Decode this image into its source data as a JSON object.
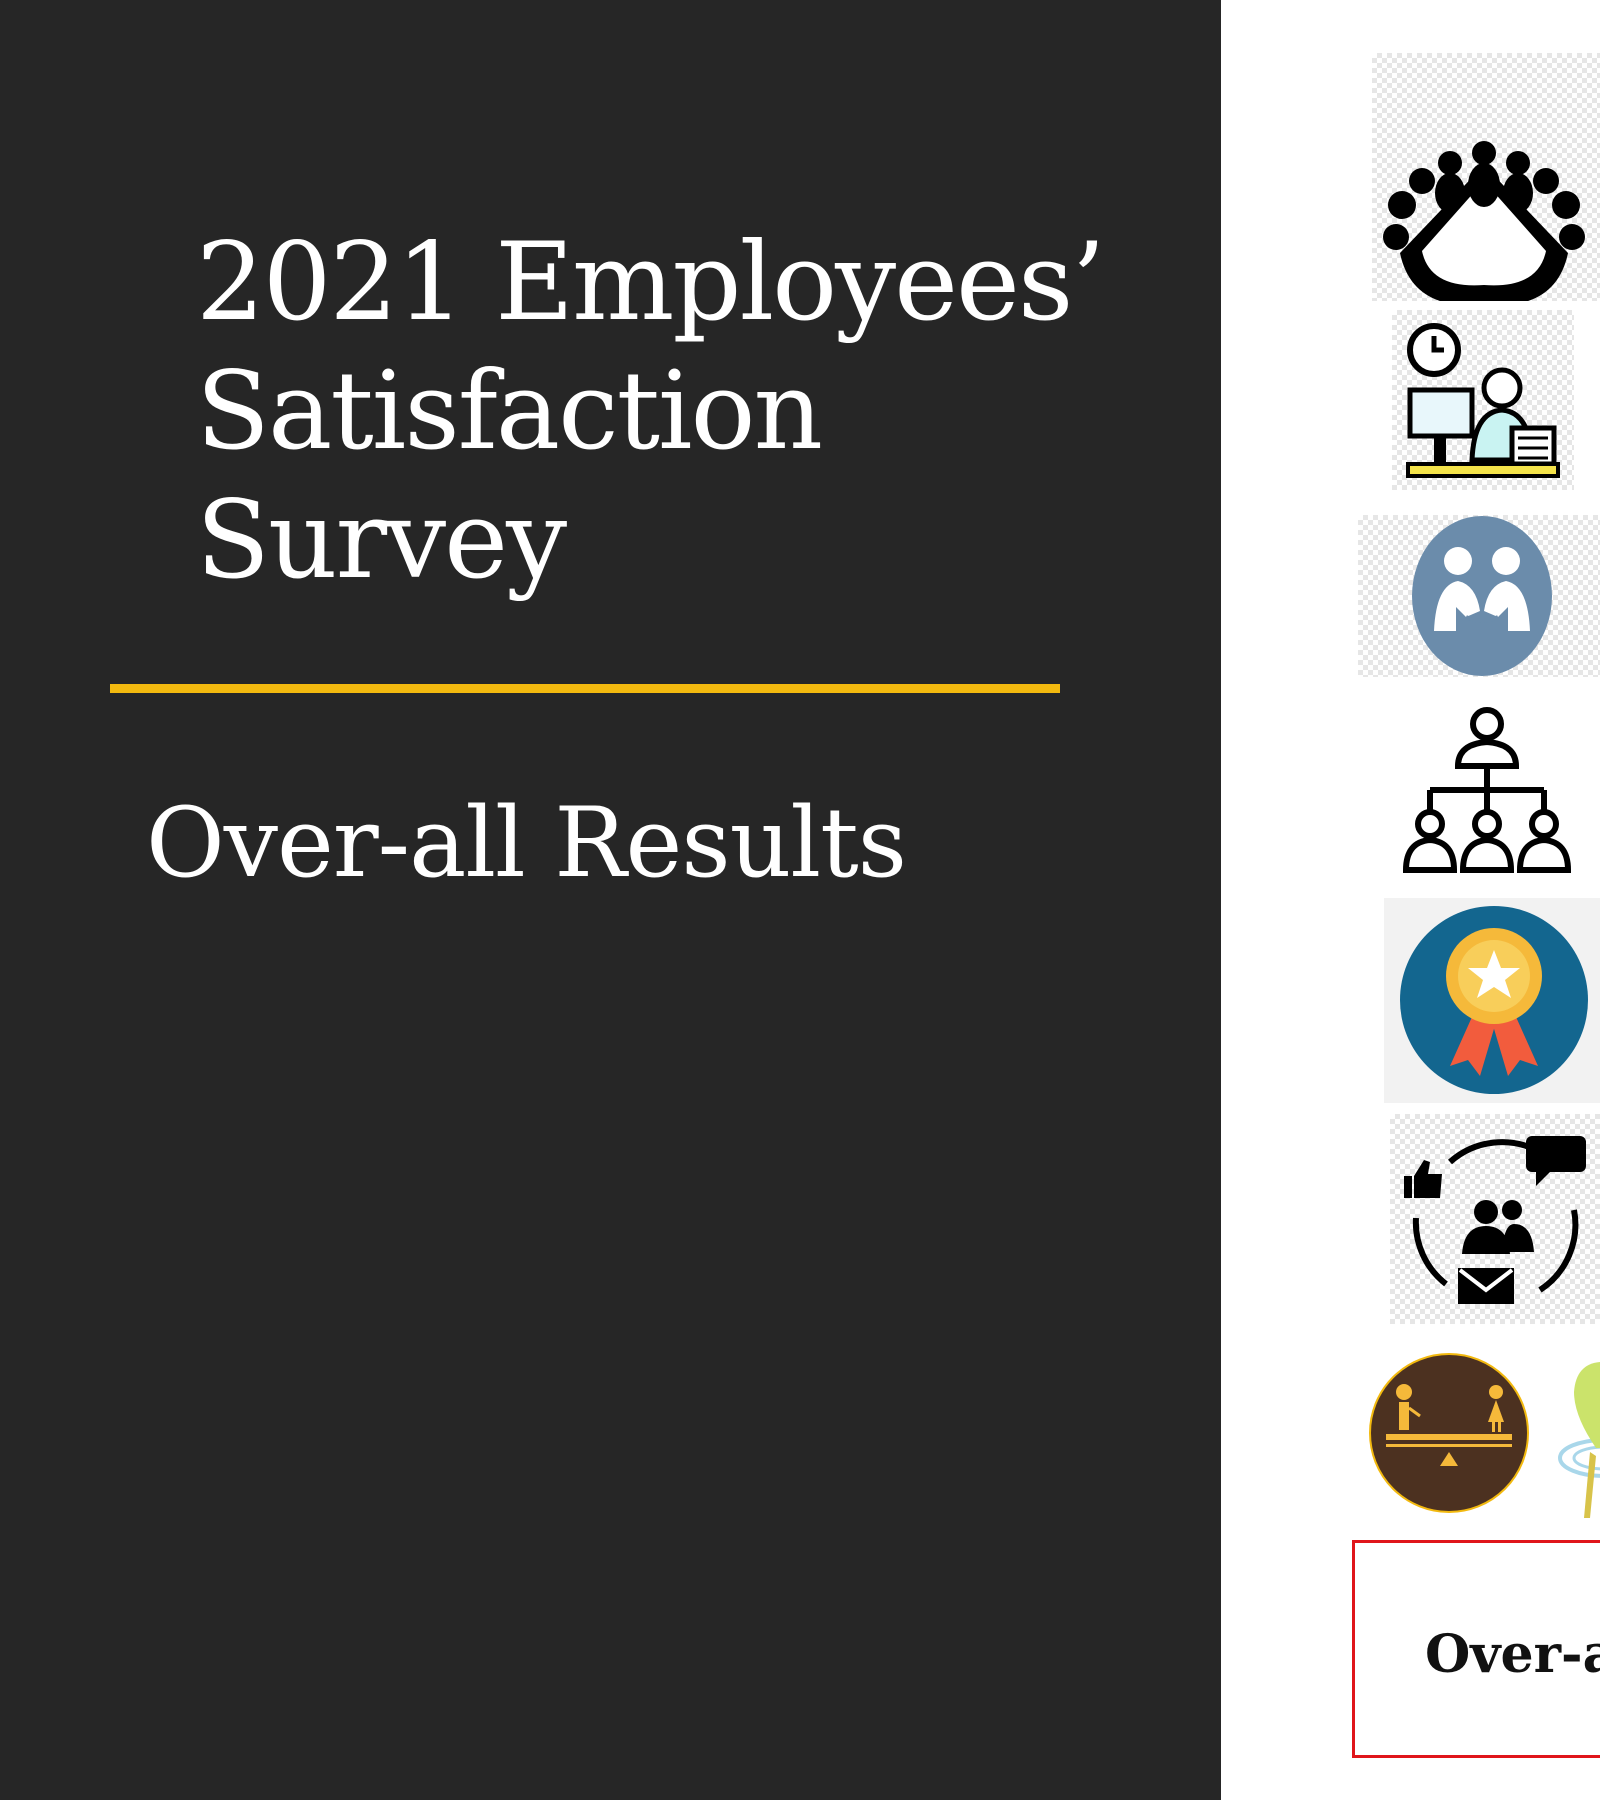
{
  "slide": {
    "title_lines": [
      "2021 Employees’",
      "Satisfaction",
      "Survey"
    ],
    "subtitle": "Over-all Results",
    "colors": {
      "left_background": "#262626",
      "accent": "#f2b90f",
      "text": "#ffffff",
      "box_border": "#e0161b"
    }
  },
  "side_icons": [
    {
      "name": "meeting-table-icon"
    },
    {
      "name": "office-worker-clock-icon"
    },
    {
      "name": "handshake-icon"
    },
    {
      "name": "org-chart-icon"
    },
    {
      "name": "award-ribbon-icon"
    },
    {
      "name": "feedback-cycle-icon"
    },
    {
      "name": "work-life-balance-icon"
    },
    {
      "name": "location-pin-icon"
    }
  ],
  "result_box": {
    "label": "Over-a"
  }
}
